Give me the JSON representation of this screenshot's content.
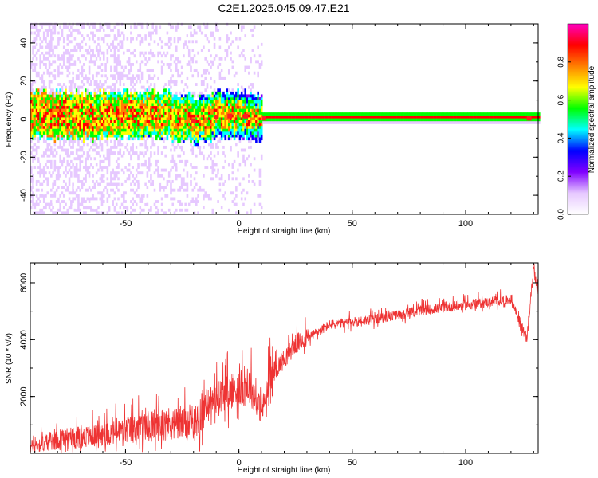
{
  "title": "C2E1.2025.045.09.47.E21",
  "chart_data": [
    {
      "type": "heatmap",
      "xlabel": "Height of straight line (km)",
      "ylabel": "Frequency (Hz)",
      "xlim": [
        -92,
        132
      ],
      "ylim": [
        -50,
        50
      ],
      "xticks": [
        -50,
        0,
        50,
        100
      ],
      "yticks": [
        -40,
        -20,
        0,
        20,
        40
      ],
      "colorbar": {
        "label": "Normalized spectral amplitude",
        "range": [
          0,
          1
        ],
        "ticks": [
          0.0,
          0.2,
          0.4,
          0.6,
          0.8
        ],
        "colors": [
          "#ffffff",
          "#e6c8ff",
          "#8000ff",
          "#0000ff",
          "#00ffff",
          "#00ff00",
          "#ffff00",
          "#ff8000",
          "#ff0000",
          "#ff00c0"
        ]
      },
      "ridge_center_hz": [
        {
          "x": -90,
          "y": 1
        },
        {
          "x": -70,
          "y": 1
        },
        {
          "x": -50,
          "y": 2
        },
        {
          "x": -35,
          "y": 2
        },
        {
          "x": -20,
          "y": -1
        },
        {
          "x": -10,
          "y": 1
        },
        {
          "x": 0,
          "y": 2
        },
        {
          "x": 10,
          "y": 0.5
        },
        {
          "x": 130,
          "y": 0.5
        }
      ]
    },
    {
      "type": "line",
      "xlabel": "Height of straight line (km)",
      "ylabel": "SNR (10 * v/v)",
      "xlim": [
        -92,
        132
      ],
      "ylim": [
        0,
        6700
      ],
      "xticks": [
        -50,
        0,
        50,
        100
      ],
      "yticks": [
        2000,
        4000,
        6000
      ],
      "color": "#ee3333",
      "trend": [
        {
          "x": -92,
          "y": 200
        },
        {
          "x": -80,
          "y": 450
        },
        {
          "x": -60,
          "y": 600
        },
        {
          "x": -40,
          "y": 900
        },
        {
          "x": -30,
          "y": 1000
        },
        {
          "x": -20,
          "y": 900
        },
        {
          "x": -15,
          "y": 1700
        },
        {
          "x": -5,
          "y": 2100
        },
        {
          "x": 5,
          "y": 2300
        },
        {
          "x": 10,
          "y": 1400
        },
        {
          "x": 15,
          "y": 2800
        },
        {
          "x": 25,
          "y": 3800
        },
        {
          "x": 40,
          "y": 4500
        },
        {
          "x": 60,
          "y": 4700
        },
        {
          "x": 80,
          "y": 5000
        },
        {
          "x": 100,
          "y": 5200
        },
        {
          "x": 120,
          "y": 5400
        },
        {
          "x": 127,
          "y": 4000
        },
        {
          "x": 130,
          "y": 6500
        },
        {
          "x": 132,
          "y": 5600
        }
      ]
    }
  ]
}
